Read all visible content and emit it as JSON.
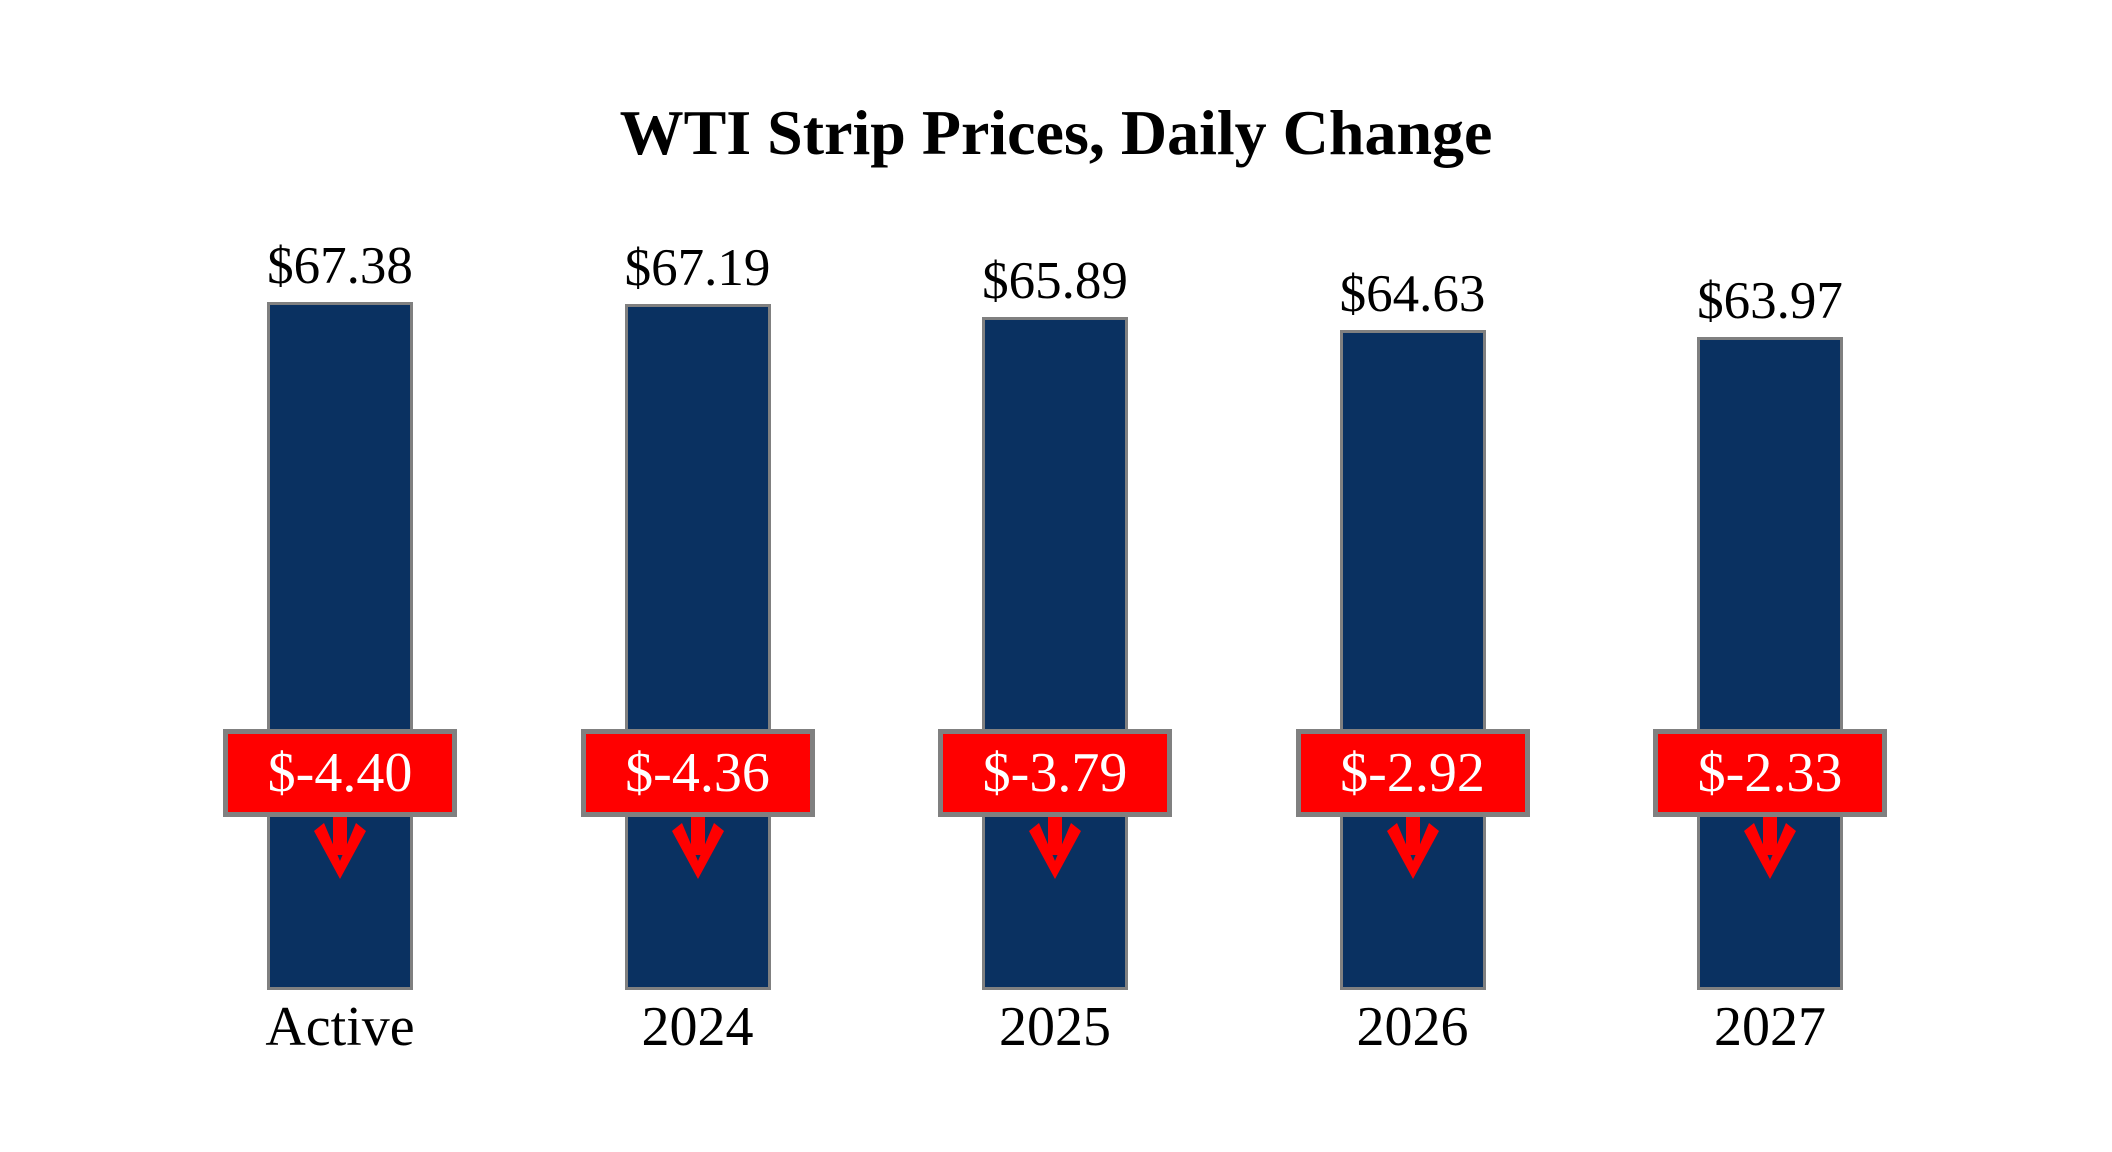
{
  "chart_data": {
    "type": "bar",
    "title": "WTI Strip Prices, Daily Change",
    "categories": [
      "Active",
      "2024",
      "2025",
      "2026",
      "2027"
    ],
    "series": [
      {
        "name": "WTI Strip Price",
        "values": [
          67.38,
          67.19,
          65.89,
          64.63,
          63.97
        ],
        "labels": [
          "$67.38",
          "$67.19",
          "$65.89",
          "$64.63",
          "$63.97"
        ]
      },
      {
        "name": "Daily Change",
        "values": [
          -4.4,
          -4.36,
          -3.79,
          -2.92,
          -2.33
        ],
        "labels": [
          "$-4.40",
          "$-4.36",
          "$-3.79",
          "$-2.92",
          "$-2.33"
        ]
      }
    ],
    "ylim": [
      0,
      70
    ],
    "grid": false,
    "legend": "none",
    "axes_visible": false,
    "colors": {
      "bar_fill": "#0A3161",
      "bar_border": "#808080",
      "change_fill": "#FF0000",
      "change_border": "#808080",
      "change_text": "#FFFFFF",
      "label_text": "#000000",
      "background": "#FFFFFF"
    }
  }
}
